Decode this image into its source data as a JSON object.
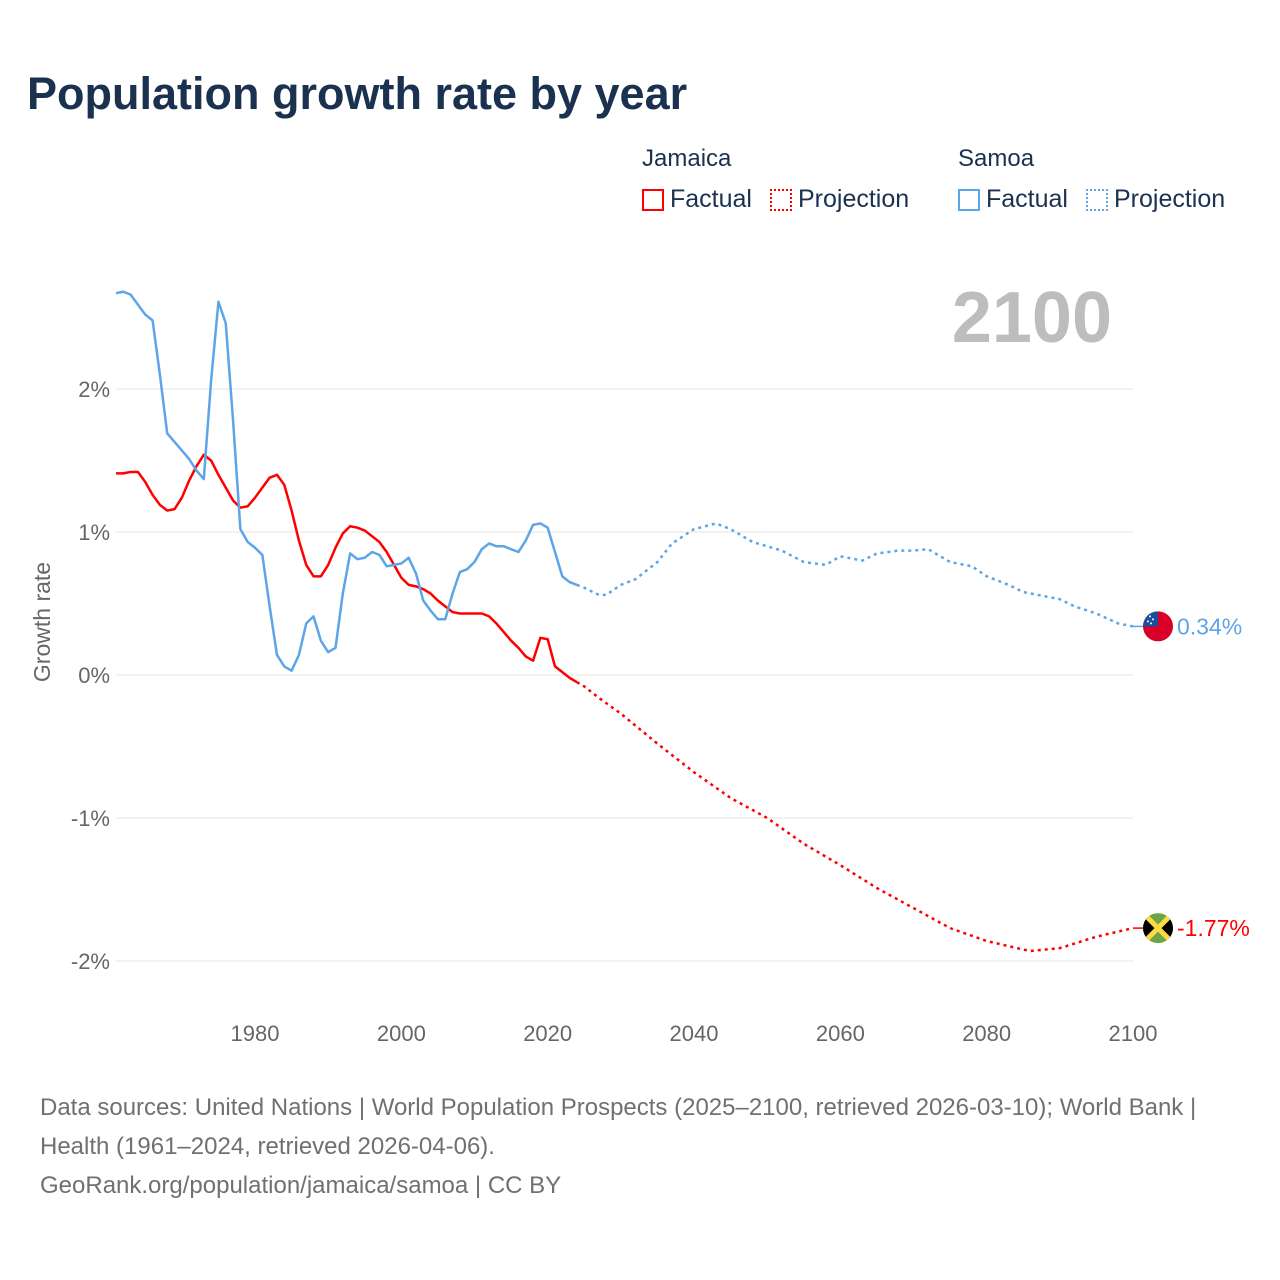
{
  "title": "Population growth rate by year",
  "legend": {
    "groups": [
      {
        "country": "Jamaica",
        "factual": "Factual",
        "projection": "Projection",
        "color": "#ff0000"
      },
      {
        "country": "Samoa",
        "factual": "Factual",
        "projection": "Projection",
        "color": "#5ea5e8"
      }
    ]
  },
  "year_label": "2100",
  "footer": {
    "sources": "Data sources: United Nations | World Population Prospects (2025–2100, retrieved 2026-03-10); World Bank | Health (1961–2024, retrieved 2026-04-06).",
    "credit": "GeoRank.org/population/jamaica/samoa | CC BY"
  },
  "chart_data": {
    "type": "line",
    "title": "Population growth rate by year",
    "xlabel": "",
    "ylabel": "Growth rate",
    "xlim": [
      1961,
      2100
    ],
    "ylim": [
      -2.3,
      2.8
    ],
    "x_ticks": [
      1980,
      2000,
      2020,
      2040,
      2060,
      2080,
      2100
    ],
    "x_tick_labels": [
      "1980",
      "2000",
      "2020",
      "2040",
      "2060",
      "2080",
      "2100"
    ],
    "y_ticks": [
      2,
      1,
      0,
      -1,
      -2
    ],
    "y_tick_labels": [
      "2%",
      "1%",
      "0%",
      "-1%",
      "-2%"
    ],
    "grid": true,
    "series": [
      {
        "name": "Jamaica",
        "color": "#ff0000",
        "end_label": "-1.77%",
        "flag": "jamaica-flag",
        "factual": {
          "x": [
            1961,
            1962,
            1963,
            1964,
            1965,
            1966,
            1967,
            1968,
            1969,
            1970,
            1971,
            1972,
            1973,
            1974,
            1975,
            1976,
            1977,
            1978,
            1979,
            1980,
            1981,
            1982,
            1983,
            1984,
            1985,
            1986,
            1987,
            1988,
            1989,
            1990,
            1991,
            1992,
            1993,
            1994,
            1995,
            1996,
            1997,
            1998,
            1999,
            2000,
            2001,
            2002,
            2003,
            2004,
            2005,
            2006,
            2007,
            2008,
            2009,
            2010,
            2011,
            2012,
            2013,
            2014,
            2015,
            2016,
            2017,
            2018,
            2019,
            2020,
            2021,
            2022,
            2023,
            2024
          ],
          "y": [
            1.41,
            1.41,
            1.42,
            1.42,
            1.35,
            1.26,
            1.19,
            1.15,
            1.16,
            1.24,
            1.36,
            1.46,
            1.54,
            1.5,
            1.4,
            1.31,
            1.22,
            1.17,
            1.18,
            1.24,
            1.31,
            1.38,
            1.4,
            1.33,
            1.15,
            0.94,
            0.77,
            0.69,
            0.69,
            0.77,
            0.89,
            0.99,
            1.04,
            1.03,
            1.01,
            0.97,
            0.93,
            0.86,
            0.77,
            0.68,
            0.63,
            0.62,
            0.6,
            0.57,
            0.52,
            0.48,
            0.44,
            0.43,
            0.43,
            0.43,
            0.43,
            0.41,
            0.36,
            0.3,
            0.24,
            0.19,
            0.13,
            0.1,
            0.26,
            0.25,
            0.06,
            0.02,
            -0.02,
            -0.05
          ]
        },
        "projection": {
          "x": [
            2024,
            2025,
            2027,
            2030,
            2035,
            2040,
            2045,
            2050,
            2055,
            2060,
            2065,
            2070,
            2075,
            2080,
            2085,
            2086,
            2090,
            2095,
            2100
          ],
          "y": [
            -0.05,
            -0.08,
            -0.16,
            -0.27,
            -0.48,
            -0.68,
            -0.86,
            -1.0,
            -1.18,
            -1.33,
            -1.49,
            -1.63,
            -1.77,
            -1.86,
            -1.92,
            -1.93,
            -1.91,
            -1.83,
            -1.77
          ]
        }
      },
      {
        "name": "Samoa",
        "color": "#5ea5e8",
        "end_label": "0.34%",
        "flag": "samoa-flag",
        "factual": {
          "x": [
            1961,
            1962,
            1963,
            1964,
            1965,
            1966,
            1967,
            1968,
            1969,
            1970,
            1971,
            1972,
            1973,
            1974,
            1975,
            1976,
            1977,
            1978,
            1979,
            1980,
            1981,
            1982,
            1983,
            1984,
            1985,
            1986,
            1987,
            1988,
            1989,
            1990,
            1991,
            1992,
            1993,
            1994,
            1995,
            1996,
            1997,
            1998,
            1999,
            2000,
            2001,
            2002,
            2003,
            2004,
            2005,
            2006,
            2007,
            2008,
            2009,
            2010,
            2011,
            2012,
            2013,
            2014,
            2015,
            2016,
            2017,
            2018,
            2019,
            2020,
            2021,
            2022,
            2023,
            2024
          ],
          "y": [
            2.67,
            2.68,
            2.66,
            2.59,
            2.52,
            2.48,
            2.1,
            1.69,
            1.63,
            1.57,
            1.51,
            1.43,
            1.37,
            2.06,
            2.61,
            2.46,
            1.78,
            1.02,
            0.93,
            0.89,
            0.84,
            0.48,
            0.14,
            0.06,
            0.03,
            0.14,
            0.36,
            0.41,
            0.24,
            0.16,
            0.19,
            0.57,
            0.85,
            0.81,
            0.82,
            0.86,
            0.84,
            0.76,
            0.77,
            0.78,
            0.82,
            0.71,
            0.52,
            0.45,
            0.39,
            0.39,
            0.57,
            0.72,
            0.74,
            0.79,
            0.88,
            0.92,
            0.9,
            0.9,
            0.88,
            0.86,
            0.94,
            1.05,
            1.06,
            1.03,
            0.86,
            0.69,
            0.65,
            0.63
          ]
        },
        "projection": {
          "x": [
            2024,
            2025,
            2027,
            2028,
            2030,
            2032,
            2035,
            2037,
            2040,
            2043,
            2045,
            2048,
            2052,
            2055,
            2058,
            2060,
            2063,
            2065,
            2068,
            2070,
            2072,
            2075,
            2078,
            2080,
            2083,
            2085,
            2090,
            2092,
            2095,
            2098,
            2100
          ],
          "y": [
            0.63,
            0.61,
            0.56,
            0.56,
            0.63,
            0.67,
            0.79,
            0.92,
            1.02,
            1.06,
            1.02,
            0.93,
            0.87,
            0.79,
            0.77,
            0.83,
            0.8,
            0.85,
            0.87,
            0.87,
            0.88,
            0.79,
            0.76,
            0.69,
            0.63,
            0.58,
            0.53,
            0.48,
            0.43,
            0.36,
            0.34
          ]
        }
      }
    ]
  }
}
